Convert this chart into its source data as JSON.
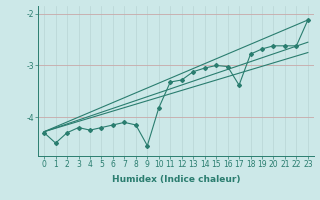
{
  "x": [
    0,
    1,
    2,
    3,
    4,
    5,
    6,
    7,
    8,
    9,
    10,
    11,
    12,
    13,
    14,
    15,
    16,
    17,
    18,
    19,
    20,
    21,
    22,
    23
  ],
  "y_data": [
    -4.3,
    -4.5,
    -4.3,
    -4.2,
    -4.25,
    -4.2,
    -4.15,
    -4.1,
    -4.15,
    -4.55,
    -3.82,
    -3.32,
    -3.28,
    -3.12,
    -3.05,
    -3.0,
    -3.02,
    -3.38,
    -2.78,
    -2.68,
    -2.62,
    -2.62,
    -2.62,
    -2.12
  ],
  "straight_lines": [
    {
      "x": [
        0,
        23
      ],
      "y": [
        -4.28,
        -2.12
      ]
    },
    {
      "x": [
        0,
        23
      ],
      "y": [
        -4.28,
        -2.55
      ]
    },
    {
      "x": [
        0,
        23
      ],
      "y": [
        -4.28,
        -2.75
      ]
    }
  ],
  "bg_color": "#cce8e8",
  "line_color": "#2a7d6f",
  "vgrid_color": "#b8d4d4",
  "hgrid_color": "#c8a8a8",
  "xlabel": "Humidex (Indice chaleur)",
  "ylim": [
    -4.75,
    -1.85
  ],
  "xlim": [
    -0.5,
    23.5
  ],
  "yticks": [
    -4,
    -3,
    -2
  ],
  "xticks": [
    0,
    1,
    2,
    3,
    4,
    5,
    6,
    7,
    8,
    9,
    10,
    11,
    12,
    13,
    14,
    15,
    16,
    17,
    18,
    19,
    20,
    21,
    22,
    23
  ],
  "marker": "D",
  "markersize": 2.0,
  "linewidth": 0.8,
  "xlabel_fontsize": 6.5,
  "tick_fontsize": 5.5
}
